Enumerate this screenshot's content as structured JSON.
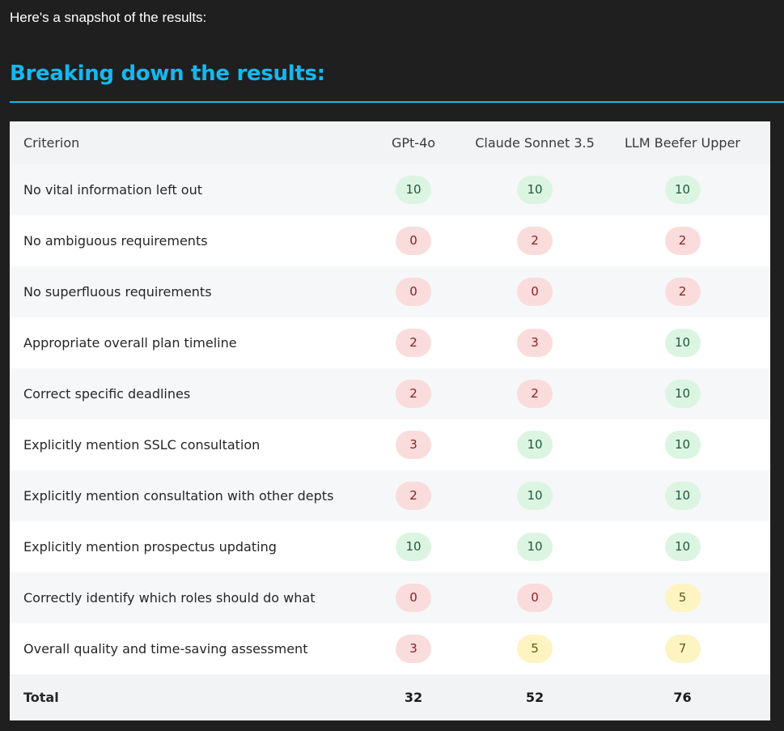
{
  "intro_text": "Here's a snapshot of the results:",
  "heading": "Breaking down the results:",
  "colors": {
    "background": "#1f1f1f",
    "heading_accent": "#14b8f0",
    "score_high_bg": "#dcf5e3",
    "score_low_bg": "#fadcdc",
    "score_mid_bg": "#fdf4c2"
  },
  "table": {
    "headers": [
      "Criterion",
      "GPt-4o",
      "Claude Sonnet 3.5",
      "LLM Beefer Upper"
    ],
    "rows": [
      {
        "criterion": "No vital information left out",
        "scores": [
          "10",
          "10",
          "10"
        ],
        "levels": [
          "high",
          "high",
          "high"
        ]
      },
      {
        "criterion": "No ambiguous requirements",
        "scores": [
          "0",
          "2",
          "2"
        ],
        "levels": [
          "low",
          "low",
          "low"
        ]
      },
      {
        "criterion": "No superfluous requirements",
        "scores": [
          "0",
          "0",
          "2"
        ],
        "levels": [
          "low",
          "low",
          "low"
        ]
      },
      {
        "criterion": "Appropriate overall plan timeline",
        "scores": [
          "2",
          "3",
          "10"
        ],
        "levels": [
          "low",
          "low",
          "high"
        ]
      },
      {
        "criterion": "Correct specific deadlines",
        "scores": [
          "2",
          "2",
          "10"
        ],
        "levels": [
          "low",
          "low",
          "high"
        ]
      },
      {
        "criterion": "Explicitly mention SSLC consultation",
        "scores": [
          "3",
          "10",
          "10"
        ],
        "levels": [
          "low",
          "high",
          "high"
        ]
      },
      {
        "criterion": "Explicitly mention consultation with other depts",
        "scores": [
          "2",
          "10",
          "10"
        ],
        "levels": [
          "low",
          "high",
          "high"
        ]
      },
      {
        "criterion": "Explicitly mention prospectus updating",
        "scores": [
          "10",
          "10",
          "10"
        ],
        "levels": [
          "high",
          "high",
          "high"
        ]
      },
      {
        "criterion": "Correctly identify which roles should do what",
        "scores": [
          "0",
          "0",
          "5"
        ],
        "levels": [
          "low",
          "low",
          "mid"
        ]
      },
      {
        "criterion": "Overall quality and time-saving assessment",
        "scores": [
          "3",
          "5",
          "7"
        ],
        "levels": [
          "low",
          "mid",
          "mid"
        ]
      }
    ],
    "total": {
      "label": "Total",
      "scores": [
        "32",
        "52",
        "76"
      ]
    }
  }
}
